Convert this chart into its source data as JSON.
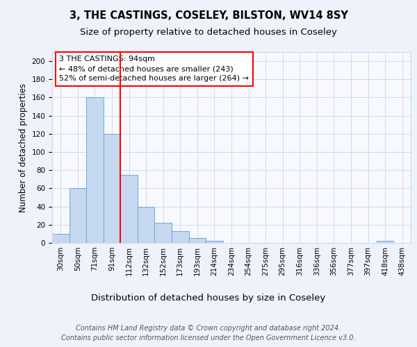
{
  "title": "3, THE CASTINGS, COSELEY, BILSTON, WV14 8SY",
  "subtitle": "Size of property relative to detached houses in Coseley",
  "xlabel": "Distribution of detached houses by size in Coseley",
  "ylabel": "Number of detached properties",
  "categories": [
    "30sqm",
    "50sqm",
    "71sqm",
    "91sqm",
    "112sqm",
    "132sqm",
    "152sqm",
    "173sqm",
    "193sqm",
    "214sqm",
    "234sqm",
    "254sqm",
    "275sqm",
    "295sqm",
    "316sqm",
    "336sqm",
    "356sqm",
    "377sqm",
    "397sqm",
    "418sqm",
    "438sqm"
  ],
  "values": [
    10,
    60,
    160,
    120,
    75,
    40,
    22,
    13,
    5,
    2,
    0,
    0,
    0,
    0,
    0,
    0,
    0,
    0,
    0,
    2,
    0
  ],
  "bar_color": "#c5d8f0",
  "bar_edge_color": "#6aaad4",
  "red_line_x": 3.5,
  "annotation_line1": "3 THE CASTINGS: 94sqm",
  "annotation_line2": "← 48% of detached houses are smaller (243)",
  "annotation_line3": "52% of semi-detached houses are larger (264) →",
  "ylim": [
    0,
    210
  ],
  "yticks": [
    0,
    20,
    40,
    60,
    80,
    100,
    120,
    140,
    160,
    180,
    200
  ],
  "background_color": "#eef2fb",
  "plot_bg_color": "#f7f9ff",
  "grid_color": "#d0d8ea",
  "footer_line1": "Contains HM Land Registry data © Crown copyright and database right 2024.",
  "footer_line2": "Contains public sector information licensed under the Open Government Licence v3.0.",
  "title_fontsize": 10.5,
  "subtitle_fontsize": 9.5,
  "xlabel_fontsize": 9.5,
  "ylabel_fontsize": 8.5,
  "tick_fontsize": 7.5,
  "annotation_fontsize": 8,
  "footer_fontsize": 7
}
